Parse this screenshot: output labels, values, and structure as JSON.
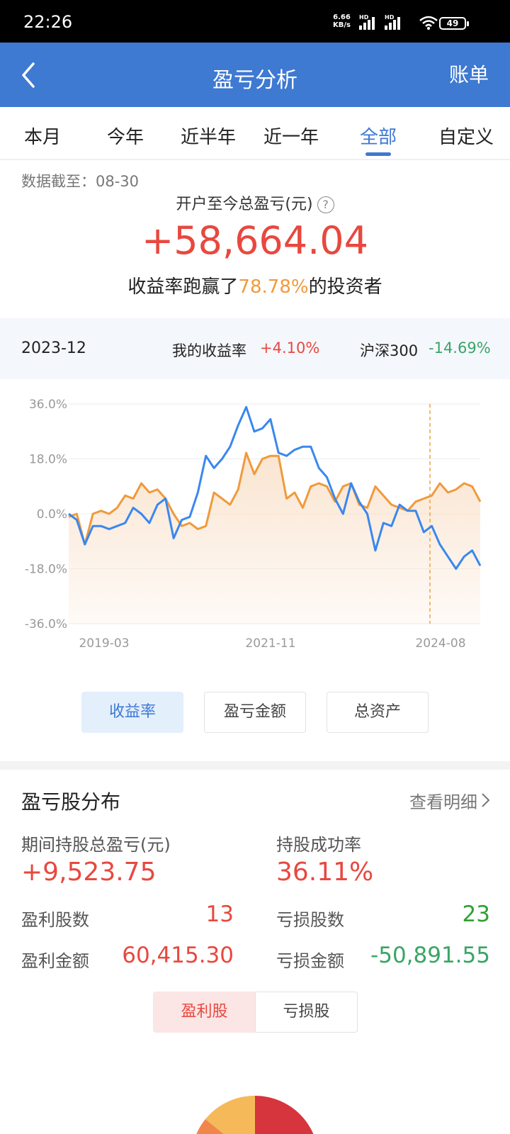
{
  "status_bar": {
    "time": "22:26",
    "net_speed_value": "6.66",
    "net_speed_unit": "KB/s",
    "hd1": "HD",
    "hd2": "HD",
    "battery": "49"
  },
  "header": {
    "title": "盈亏分析",
    "bill_label": "账单",
    "back_icon": "chevron-left-icon"
  },
  "tabs": [
    {
      "label": "本月",
      "active": false
    },
    {
      "label": "今年",
      "active": false
    },
    {
      "label": "近半年",
      "active": false
    },
    {
      "label": "近一年",
      "active": false
    },
    {
      "label": "全部",
      "active": true
    },
    {
      "label": "自定义",
      "active": false
    }
  ],
  "summary": {
    "as_of": "数据截至：08-30",
    "total_label": "开户至今总盈亏(元)",
    "help_icon": "?",
    "total_value": "+58,664.04",
    "beat_prefix": "收益率跑赢了",
    "beat_pct": "78.78%",
    "beat_suffix": "的投资者"
  },
  "compare": {
    "period": "2023-12",
    "mine_label": "我的收益率",
    "mine_value": "+4.10%",
    "index_label": "沪深300",
    "index_value": "-14.69%"
  },
  "chart_data": {
    "type": "line",
    "y_tick_labels": [
      "36.0%",
      "18.0%",
      "0.0%",
      "-18.0%",
      "-36.0%"
    ],
    "ylim": [
      -36,
      36
    ],
    "x_tick_labels": [
      "2019-03",
      "2021-11",
      "2024-08"
    ],
    "crosshair_label": "2023-12",
    "series": [
      {
        "name": "我的收益率",
        "color": "#f09a3c",
        "values": [
          -1,
          0,
          -10,
          0,
          1,
          0,
          2,
          6,
          5,
          10,
          7,
          8,
          5,
          0,
          -4,
          -3,
          -5,
          -4,
          7,
          5,
          3,
          8,
          20,
          13,
          18,
          19,
          19,
          5,
          7,
          2,
          9,
          10,
          9,
          4,
          9,
          10,
          3,
          2,
          9,
          6,
          3,
          2,
          1,
          4,
          5,
          6,
          10,
          7,
          8,
          10,
          9,
          4
        ]
      },
      {
        "name": "沪深300",
        "color": "#3a87ef",
        "values": [
          0,
          -2,
          -10,
          -4,
          -4,
          -5,
          -4,
          -3,
          2,
          0,
          -3,
          3,
          5,
          -8,
          -2,
          -1,
          7,
          19,
          15,
          18,
          22,
          29,
          35,
          27,
          28,
          31,
          20,
          19,
          21,
          22,
          22,
          15,
          12,
          5,
          0,
          10,
          4,
          0,
          -12,
          -3,
          -4,
          3,
          1,
          1,
          -6,
          -4,
          -10,
          -14,
          -18,
          -14,
          -12,
          -17
        ]
      }
    ],
    "area_fill_color": "#f9e0c8",
    "grid": true
  },
  "chart_toggle": [
    {
      "label": "收益率",
      "active": true
    },
    {
      "label": "盈亏金额",
      "active": false
    },
    {
      "label": "总资产",
      "active": false
    }
  ],
  "distribution": {
    "title": "盈亏股分布",
    "detail_link": "查看明细",
    "period_total_label": "期间持股总盈亏(元)",
    "period_total_value": "+9,523.75",
    "success_rate_label": "持股成功率",
    "success_rate_value": "36.11%",
    "profit_count_label": "盈利股数",
    "profit_count_value": "13",
    "loss_count_label": "亏损股数",
    "loss_count_value": "23",
    "profit_amount_label": "盈利金额",
    "profit_amount_value": "60,415.30",
    "loss_amount_label": "亏损金额",
    "loss_amount_value": "-50,891.55",
    "segment": [
      {
        "label": "盈利股",
        "active": true
      },
      {
        "label": "亏损股",
        "active": false
      }
    ]
  },
  "colors": {
    "brand_blue": "#3e79d2",
    "profit_red": "#e8483f",
    "loss_green": "#3aa564",
    "orange": "#f09a3c"
  }
}
